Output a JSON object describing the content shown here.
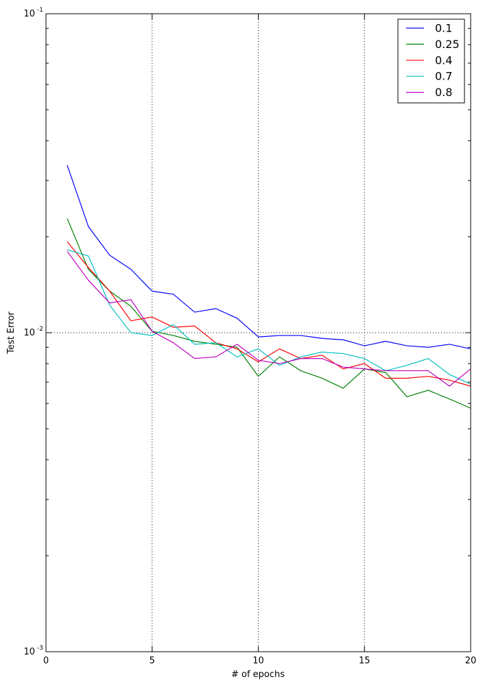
{
  "chart_data": {
    "type": "line",
    "title": "",
    "xlabel": "# of epochs",
    "ylabel": "Test Error",
    "xlim": [
      0,
      20
    ],
    "ylim": [
      0.001,
      0.1
    ],
    "yscale": "log",
    "grid": "major, dotted",
    "legend_position": "top-right",
    "x_ticks": [
      {
        "value": 0,
        "label": "0"
      },
      {
        "value": 5,
        "label": "5"
      },
      {
        "value": 10,
        "label": "10"
      },
      {
        "value": 15,
        "label": "15"
      },
      {
        "value": 20,
        "label": "20"
      }
    ],
    "y_ticks": [
      {
        "value": 0.001,
        "base": "10",
        "exp": "-3"
      },
      {
        "value": 0.01,
        "base": "10",
        "exp": "-2"
      },
      {
        "value": 0.1,
        "base": "10",
        "exp": "-1"
      }
    ],
    "x": [
      1,
      2,
      3,
      4,
      5,
      6,
      7,
      8,
      9,
      10,
      11,
      12,
      13,
      14,
      15,
      16,
      17,
      18,
      19,
      20
    ],
    "series": [
      {
        "name": "0.1",
        "color": "#0000ff",
        "values": [
          0.0335,
          0.0215,
          0.0175,
          0.0158,
          0.0135,
          0.0132,
          0.0116,
          0.0119,
          0.0111,
          0.0097,
          0.0098,
          0.0098,
          0.0096,
          0.0095,
          0.0091,
          0.0094,
          0.0091,
          0.009,
          0.0092,
          0.0089
        ]
      },
      {
        "name": "0.25",
        "color": "#008000",
        "values": [
          0.0228,
          0.0158,
          0.0135,
          0.0121,
          0.0101,
          0.0098,
          0.0094,
          0.0092,
          0.009,
          0.0073,
          0.0084,
          0.0076,
          0.0072,
          0.0067,
          0.0077,
          0.0075,
          0.0063,
          0.0066,
          0.0062,
          0.0058
        ]
      },
      {
        "name": "0.4",
        "color": "#ff0000",
        "values": [
          0.0193,
          0.016,
          0.0135,
          0.0109,
          0.0112,
          0.0104,
          0.0105,
          0.0093,
          0.0089,
          0.0081,
          0.0089,
          0.0083,
          0.0085,
          0.0077,
          0.008,
          0.0072,
          0.0072,
          0.0073,
          0.0071,
          0.0068
        ]
      },
      {
        "name": "0.7",
        "color": "#00bfbf",
        "values": [
          0.0182,
          0.0174,
          0.0122,
          0.01,
          0.0098,
          0.0106,
          0.0092,
          0.0093,
          0.0084,
          0.0089,
          0.0079,
          0.0084,
          0.0087,
          0.0086,
          0.0083,
          0.0076,
          0.0079,
          0.0083,
          0.0074,
          0.0069
        ]
      },
      {
        "name": "0.8",
        "color": "#bf00bf",
        "values": [
          0.018,
          0.0146,
          0.0124,
          0.0127,
          0.0101,
          0.0093,
          0.0083,
          0.0084,
          0.0092,
          0.0082,
          0.008,
          0.0083,
          0.0083,
          0.0078,
          0.0077,
          0.0076,
          0.0076,
          0.0076,
          0.0068,
          0.0077
        ]
      }
    ]
  }
}
